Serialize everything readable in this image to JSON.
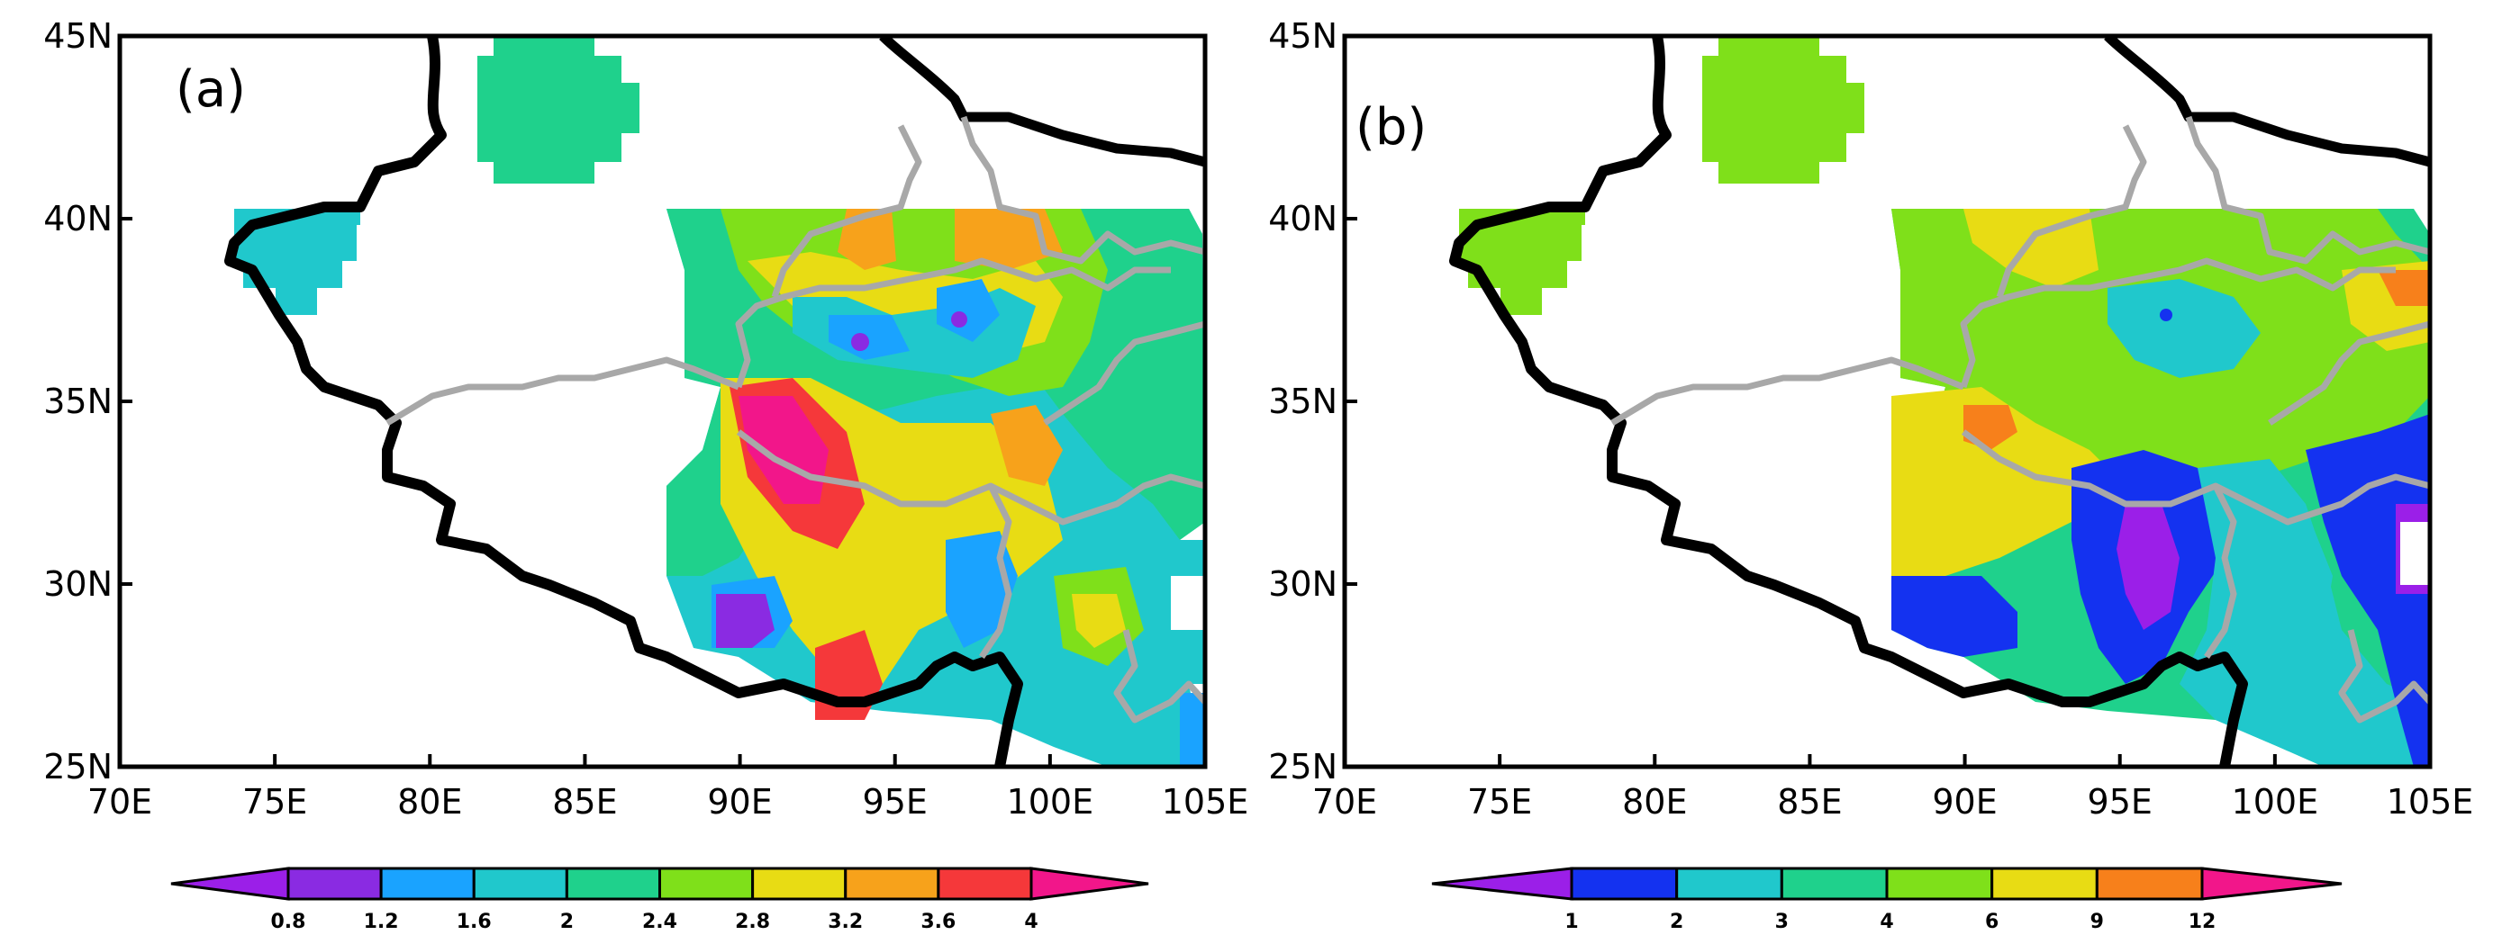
{
  "panels": [
    {
      "label": "(a)",
      "x_ticks": [
        "70E",
        "75E",
        "80E",
        "85E",
        "90E",
        "95E",
        "100E",
        "105E"
      ],
      "y_ticks": [
        "25N",
        "30N",
        "35N",
        "40N",
        "45N"
      ],
      "colorbar": {
        "labels": [
          "0.8",
          "1.2",
          "1.6",
          "2",
          "2.4",
          "2.8",
          "3.2",
          "3.6",
          "4"
        ],
        "colors": [
          "#9b1fe8",
          "#8a2be2",
          "#1aa3ff",
          "#20c8cc",
          "#1fd18c",
          "#7fe01a",
          "#e8dc14",
          "#f7a21b",
          "#f5383a",
          "#f2168a"
        ]
      }
    },
    {
      "label": "(b)",
      "x_ticks": [
        "70E",
        "75E",
        "80E",
        "85E",
        "90E",
        "95E",
        "100E",
        "105E"
      ],
      "y_ticks": [
        "25N",
        "30N",
        "35N",
        "40N",
        "45N"
      ],
      "colorbar": {
        "labels": [
          "1",
          "2",
          "3",
          "4",
          "6",
          "9",
          "12"
        ],
        "colors": [
          "#9b1fe8",
          "#1432f0",
          "#20c8cc",
          "#1fd18c",
          "#7fe01a",
          "#e8dc14",
          "#f7801b",
          "#f2168a"
        ]
      }
    }
  ]
}
